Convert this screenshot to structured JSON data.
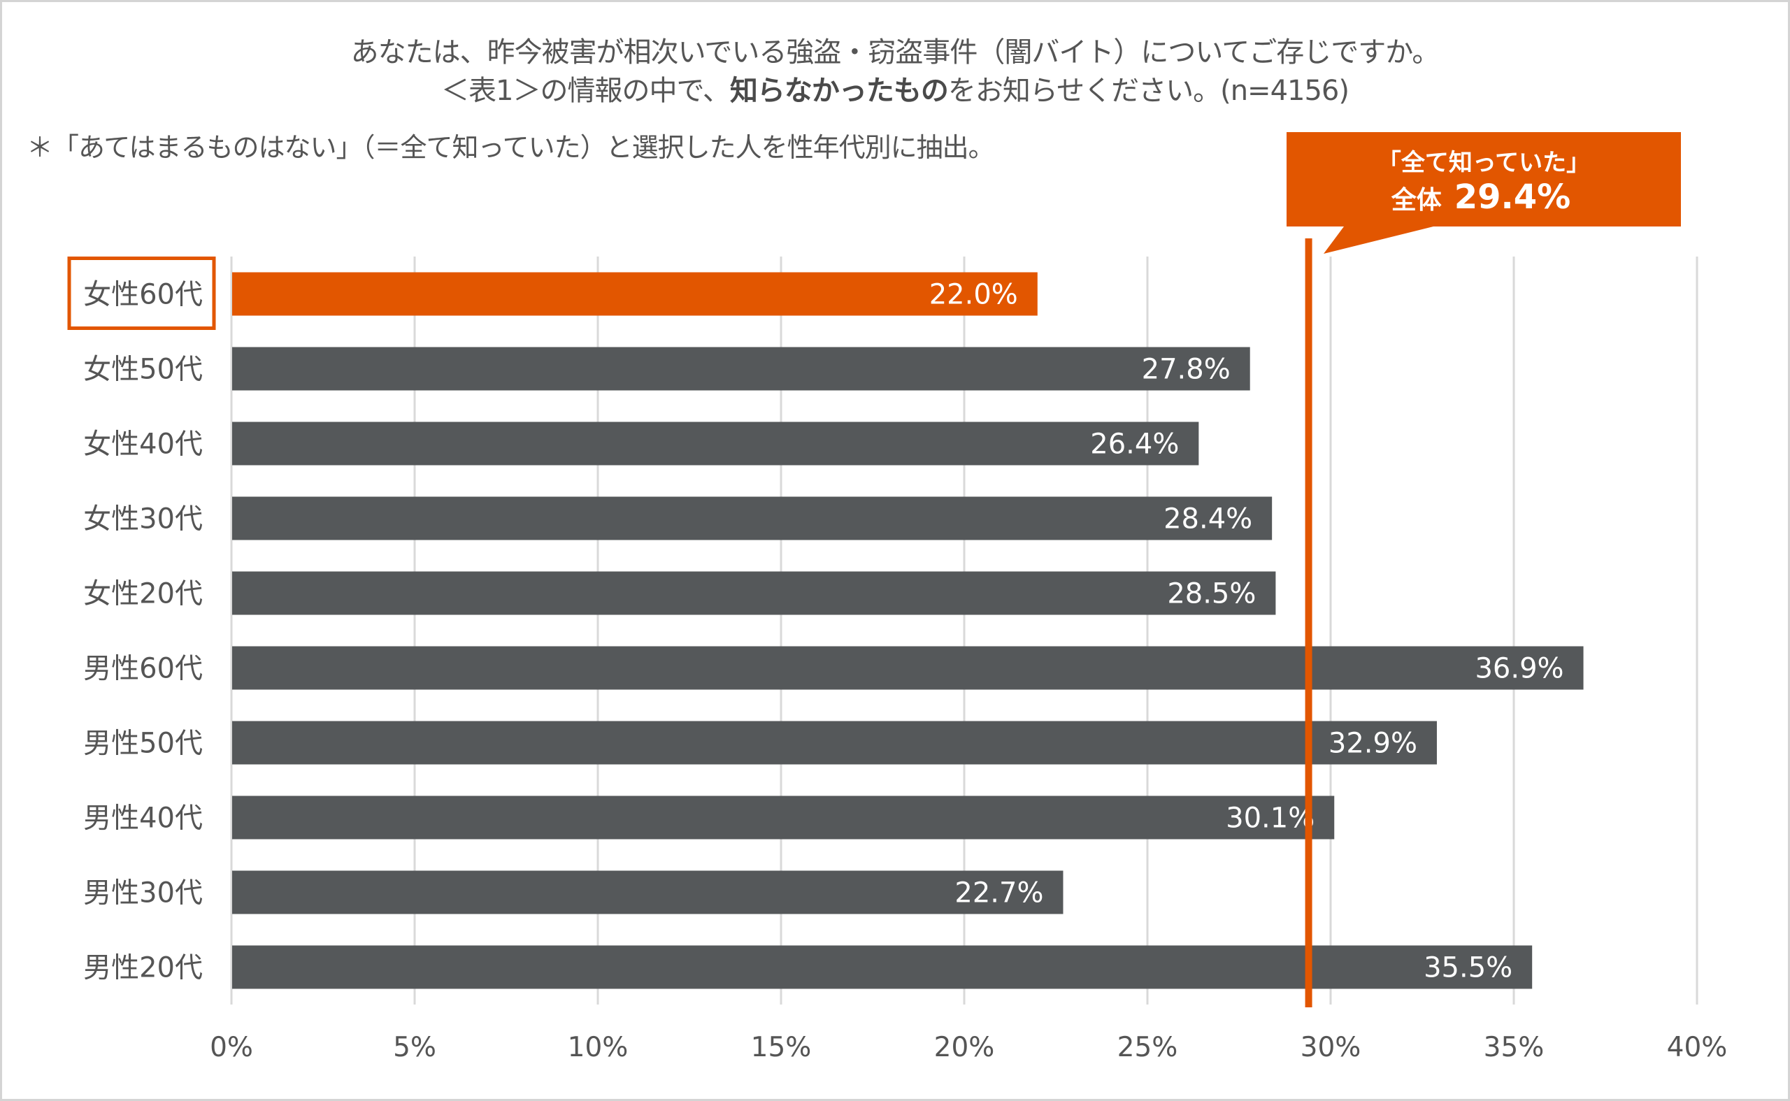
{
  "header": {
    "title_line1": "あなたは、昨今被害が相次いでいる強盗・窃盗事件（闇バイト）についてご存じですか。",
    "title_line2_prefix": "＜表1＞の情報の中で、",
    "title_line2_bold": "知らなかったもの",
    "title_line2_suffix": "をお知らせください。(n=4156)",
    "note": "＊「あてはまるものはない」（＝全て知っていた）と選択した人を性年代別に抽出。"
  },
  "colors": {
    "highlight": "#e25600",
    "bar": "#55585a",
    "grid": "#d9d9d9",
    "text": "#555555"
  },
  "chart_data": {
    "type": "bar",
    "orientation": "horizontal",
    "title": "あなたは、昨今被害が相次いでいる強盗・窃盗事件（闇バイト）についてご存じですか。＜表1＞の情報の中で、知らなかったものをお知らせください。(n=4156)",
    "xlabel": "",
    "ylabel": "",
    "xlim": [
      0,
      40
    ],
    "grid": true,
    "categories": [
      "女性60代",
      "女性50代",
      "女性40代",
      "女性30代",
      "女性20代",
      "男性60代",
      "男性50代",
      "男性40代",
      "男性30代",
      "男性20代"
    ],
    "values": [
      22.0,
      27.8,
      26.4,
      28.4,
      28.5,
      36.9,
      32.9,
      30.1,
      22.7,
      35.5
    ],
    "value_labels": [
      "22.0%",
      "27.8%",
      "26.4%",
      "28.4%",
      "28.5%",
      "36.9%",
      "32.9%",
      "30.1%",
      "22.7%",
      "35.5%"
    ],
    "highlighted_category": "女性60代",
    "x_ticks": [
      0,
      5,
      10,
      15,
      20,
      25,
      30,
      35,
      40
    ],
    "x_tick_labels": [
      "0%",
      "5%",
      "10%",
      "15%",
      "20%",
      "25%",
      "30%",
      "35%",
      "40%"
    ],
    "reference_line": {
      "value": 29.4,
      "label_line1": "「全て知っていた」",
      "label_line2_prefix": "全体",
      "label_line2_value": "29.4%"
    },
    "legend": "none"
  }
}
